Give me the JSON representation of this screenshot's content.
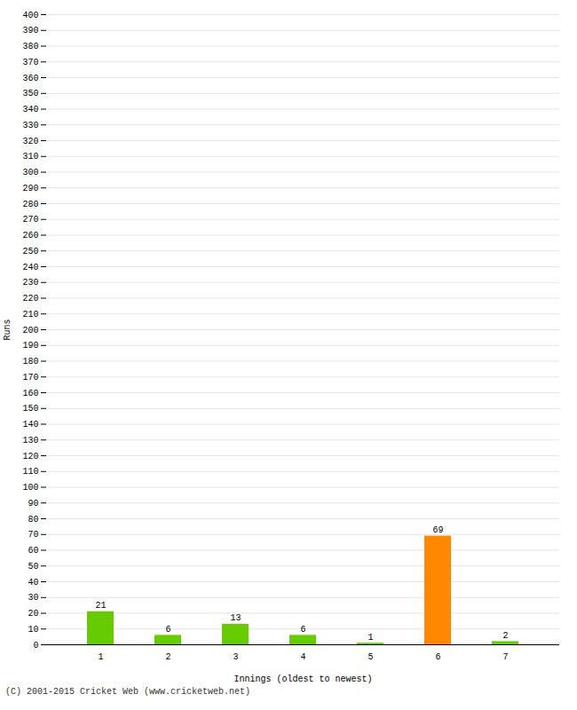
{
  "chart_data": {
    "type": "bar",
    "categories": [
      "1",
      "2",
      "3",
      "4",
      "5",
      "6",
      "7"
    ],
    "values": [
      21,
      6,
      13,
      6,
      1,
      69,
      2
    ],
    "colors": [
      "#66cc00",
      "#66cc00",
      "#66cc00",
      "#66cc00",
      "#66cc00",
      "#ff8800",
      "#66cc00"
    ],
    "xlabel": "Innings (oldest to newest)",
    "ylabel": "Runs",
    "ylim": [
      0,
      400
    ],
    "yticks": [
      0,
      10,
      20,
      30,
      40,
      50,
      60,
      70,
      80,
      90,
      100,
      110,
      120,
      130,
      140,
      150,
      160,
      170,
      180,
      190,
      200,
      210,
      220,
      230,
      240,
      250,
      260,
      270,
      280,
      290,
      300,
      310,
      320,
      330,
      340,
      350,
      360,
      370,
      380,
      390,
      400
    ],
    "grid": true,
    "data_labels": true,
    "annotations": [
      "(C) 2001-2015 Cricket Web (www.cricketweb.net)"
    ]
  }
}
